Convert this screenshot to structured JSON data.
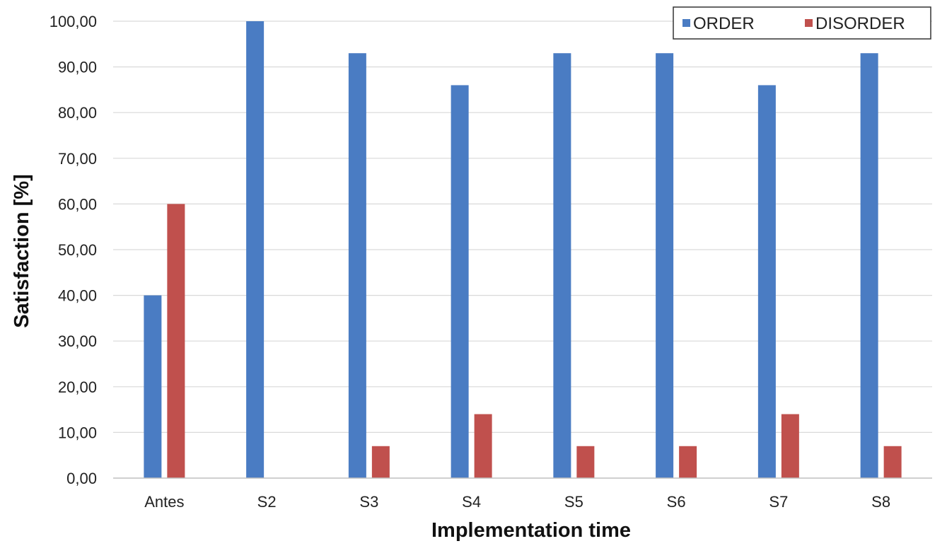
{
  "chart_data": {
    "type": "bar",
    "categories": [
      "Antes",
      "S2",
      "S3",
      "S4",
      "S5",
      "S6",
      "S7",
      "S8"
    ],
    "series": [
      {
        "name": "ORDER",
        "color": "#4a7cc3",
        "values": [
          40,
          100,
          93,
          86,
          93,
          93,
          86,
          93
        ]
      },
      {
        "name": "DISORDER",
        "color": "#c0504d",
        "values": [
          60,
          0,
          7,
          14,
          7,
          7,
          14,
          7
        ]
      }
    ],
    "xlabel": "Implementation time",
    "ylabel": "Satisfaction [%]",
    "ylim": [
      0,
      100
    ],
    "yticks": [
      "0,00",
      "10,00",
      "20,00",
      "30,00",
      "40,00",
      "50,00",
      "60,00",
      "70,00",
      "80,00",
      "90,00",
      "100,00"
    ],
    "grid": true,
    "legend_position": "top-right"
  }
}
